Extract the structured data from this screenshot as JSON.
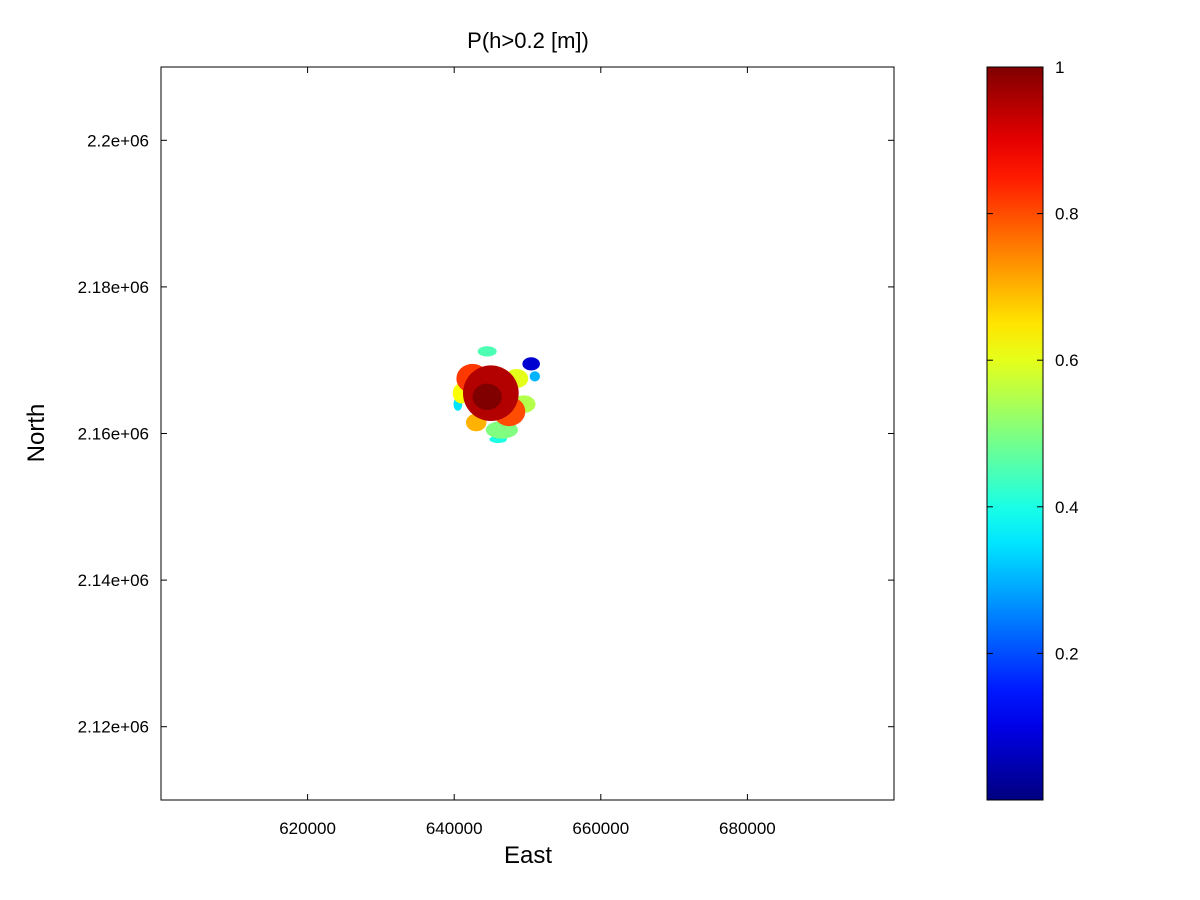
{
  "chart_data": {
    "type": "heatmap",
    "title": "P(h>0.2 [m])",
    "xlabel": "East",
    "ylabel": "North",
    "xlim": [
      600000,
      700000
    ],
    "ylim": [
      2110000,
      2210000
    ],
    "xticks": [
      620000,
      640000,
      660000,
      680000
    ],
    "xtick_labels": [
      "620000",
      "640000",
      "660000",
      "680000"
    ],
    "yticks": [
      2120000,
      2140000,
      2160000,
      2180000,
      2200000
    ],
    "ytick_labels": [
      "2.12e+06",
      "2.14e+06",
      "2.16e+06",
      "2.18e+06",
      "2.2e+06"
    ],
    "grid": false,
    "colormap": "jet",
    "colorbar": {
      "range": [
        0,
        1
      ],
      "ticks": [
        0.2,
        0.4,
        0.6,
        0.8,
        1
      ],
      "tick_labels": [
        "0.2",
        "0.4",
        "0.6",
        "0.8",
        "1"
      ]
    },
    "field": {
      "center": [
        645000,
        2165000
      ],
      "extent_x": [
        640000,
        652000
      ],
      "extent_y": [
        2158500,
        2173000
      ],
      "peak_value": 1.0,
      "patches": [
        {
          "cx": 645000,
          "cy": 2165500,
          "rx": 3800,
          "ry": 3800,
          "value": 0.95
        },
        {
          "cx": 644500,
          "cy": 2165000,
          "rx": 2000,
          "ry": 1800,
          "value": 1.0
        },
        {
          "cx": 642500,
          "cy": 2167500,
          "rx": 2200,
          "ry": 2000,
          "value": 0.82
        },
        {
          "cx": 647500,
          "cy": 2163000,
          "rx": 2200,
          "ry": 2000,
          "value": 0.8
        },
        {
          "cx": 641000,
          "cy": 2165500,
          "rx": 1200,
          "ry": 1400,
          "value": 0.62
        },
        {
          "cx": 649500,
          "cy": 2164000,
          "rx": 1600,
          "ry": 1200,
          "value": 0.55
        },
        {
          "cx": 646500,
          "cy": 2160500,
          "rx": 2200,
          "ry": 1200,
          "value": 0.5
        },
        {
          "cx": 648500,
          "cy": 2167500,
          "rx": 1600,
          "ry": 1300,
          "value": 0.6
        },
        {
          "cx": 643000,
          "cy": 2161500,
          "rx": 1400,
          "ry": 1200,
          "value": 0.7
        },
        {
          "cx": 650500,
          "cy": 2169500,
          "rx": 1200,
          "ry": 900,
          "value": 0.08
        },
        {
          "cx": 651000,
          "cy": 2167800,
          "rx": 700,
          "ry": 700,
          "value": 0.3
        },
        {
          "cx": 644500,
          "cy": 2171200,
          "rx": 1300,
          "ry": 700,
          "value": 0.45
        },
        {
          "cx": 640500,
          "cy": 2164000,
          "rx": 600,
          "ry": 900,
          "value": 0.35
        },
        {
          "cx": 646000,
          "cy": 2159200,
          "rx": 1200,
          "ry": 500,
          "value": 0.4
        }
      ]
    }
  }
}
